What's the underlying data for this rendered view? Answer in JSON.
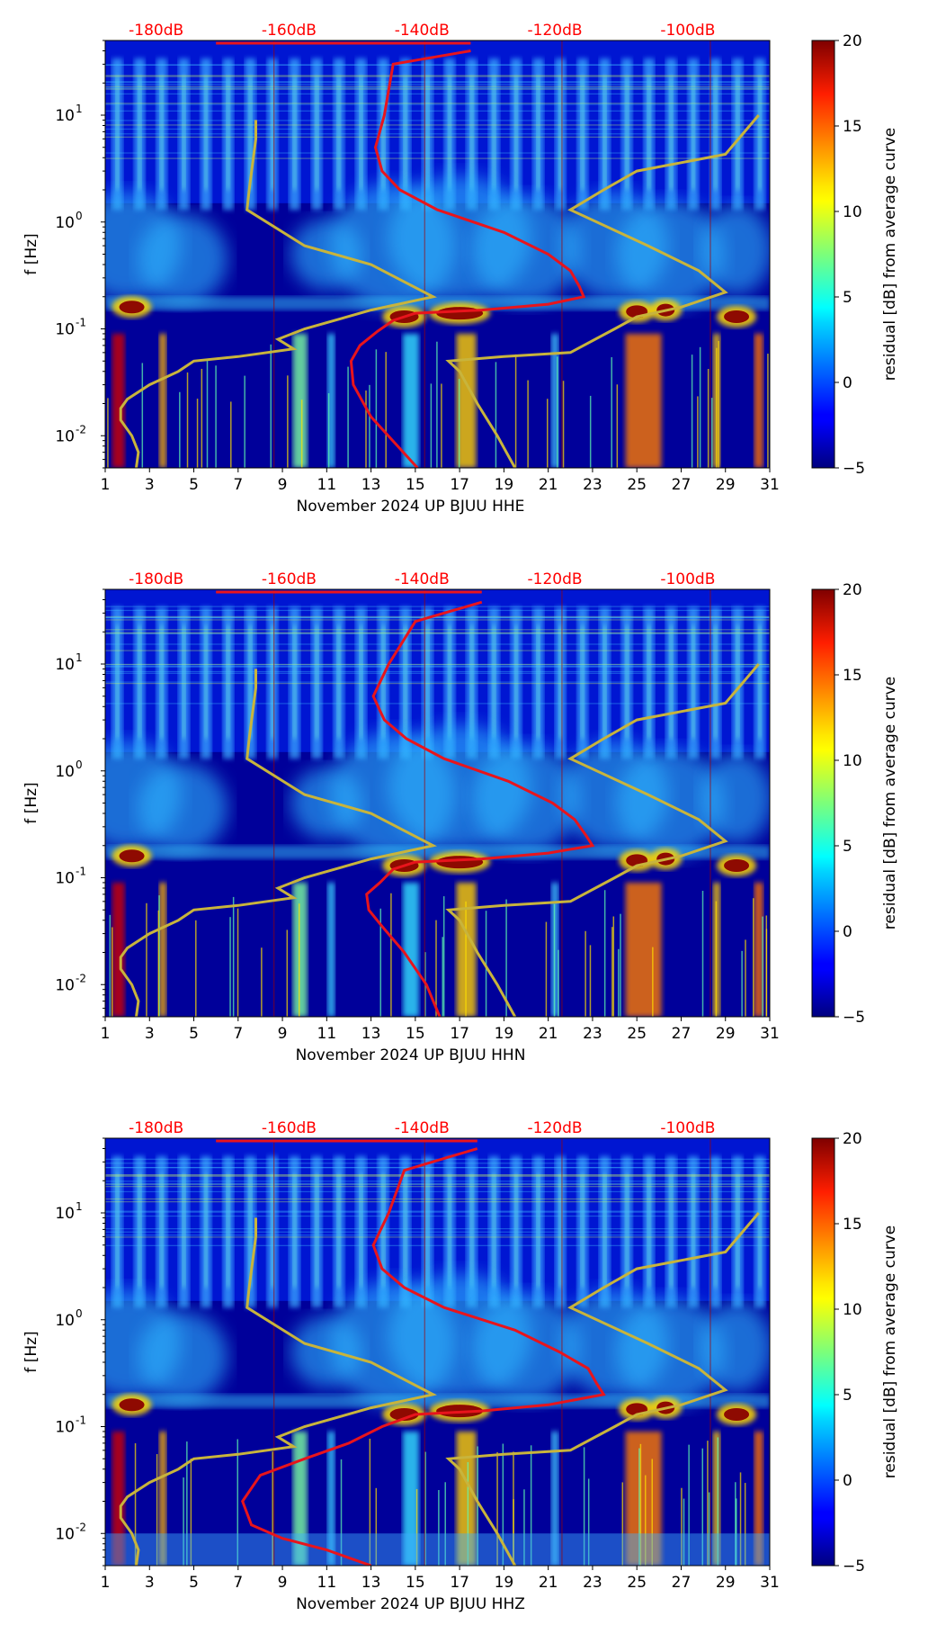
{
  "chart_data": [
    {
      "type": "heatmap",
      "channel": "HHE",
      "xlabel": "November 2024 UP BJUU  HHE",
      "ylabel": "f [Hz]",
      "x_ticks": [
        "1",
        "3",
        "5",
        "7",
        "9",
        "11",
        "13",
        "15",
        "17",
        "19",
        "21",
        "23",
        "25",
        "27",
        "29",
        "31"
      ],
      "y_ticks": [
        {
          "label": "10",
          "exp": "-2",
          "value": 0.01
        },
        {
          "label": "10",
          "exp": "-1",
          "value": 0.1
        },
        {
          "label": "10",
          "exp": "0",
          "value": 1
        },
        {
          "label": "10",
          "exp": "1",
          "value": 10
        }
      ],
      "top_labels": [
        "-180dB",
        "-160dB",
        "-140dB",
        "-120dB",
        "-100dB"
      ],
      "colorbar": {
        "label": "residual [dB] from average curve",
        "ticks": [
          "20",
          "15",
          "10",
          "5",
          "0",
          "−5"
        ],
        "range": [
          -5,
          20
        ]
      },
      "xlim": [
        1,
        31
      ],
      "ylim": [
        0.005,
        50
      ],
      "red_curve": [
        [
          17.5,
          40
        ],
        [
          14,
          30
        ],
        [
          13.6,
          10
        ],
        [
          13.2,
          5
        ],
        [
          13.5,
          3
        ],
        [
          14.3,
          2
        ],
        [
          16,
          1.3
        ],
        [
          19,
          0.8
        ],
        [
          21,
          0.5
        ],
        [
          22,
          0.35
        ],
        [
          22.4,
          0.25
        ],
        [
          22.6,
          0.2
        ],
        [
          21,
          0.17
        ],
        [
          18,
          0.15
        ],
        [
          15,
          0.14
        ],
        [
          14,
          0.12
        ],
        [
          13.3,
          0.095
        ],
        [
          12.5,
          0.07
        ],
        [
          12.1,
          0.05
        ],
        [
          12.2,
          0.03
        ],
        [
          13,
          0.015
        ],
        [
          14.2,
          0.008
        ],
        [
          15.1,
          0.005
        ]
      ],
      "yellow_curve": [
        [
          7.8,
          9
        ],
        [
          7.8,
          6
        ],
        [
          7.5,
          2
        ],
        [
          7.4,
          1.3
        ],
        [
          10,
          0.6
        ],
        [
          13,
          0.4
        ],
        [
          15.8,
          0.2
        ],
        [
          13,
          0.15
        ],
        [
          10,
          0.1
        ],
        [
          8.8,
          0.08
        ],
        [
          9.5,
          0.065
        ],
        [
          7,
          0.055
        ],
        [
          5,
          0.05
        ],
        [
          4.3,
          0.04
        ],
        [
          3,
          0.03
        ],
        [
          2,
          0.022
        ],
        [
          1.7,
          0.018
        ],
        [
          1.7,
          0.014
        ],
        [
          2.2,
          0.01
        ],
        [
          2.5,
          0.007
        ],
        [
          2.4,
          0.005
        ]
      ],
      "yellow_curve_right": [
        [
          30.5,
          10
        ],
        [
          29,
          4.3
        ],
        [
          25,
          3
        ],
        [
          23.5,
          2
        ],
        [
          22,
          1.3
        ],
        [
          25.5,
          0.6
        ],
        [
          27.8,
          0.35
        ],
        [
          29,
          0.22
        ],
        [
          27,
          0.16
        ],
        [
          25,
          0.13
        ],
        [
          24,
          0.1
        ],
        [
          22,
          0.06
        ],
        [
          19,
          0.055
        ],
        [
          16.5,
          0.05
        ],
        [
          17,
          0.04
        ],
        [
          17.8,
          0.02
        ],
        [
          18.7,
          0.01
        ],
        [
          19.5,
          0.005
        ]
      ]
    },
    {
      "type": "heatmap",
      "channel": "HHN",
      "xlabel": "November 2024 UP BJUU  HHN",
      "ylabel": "f [Hz]",
      "x_ticks": [
        "1",
        "3",
        "5",
        "7",
        "9",
        "11",
        "13",
        "15",
        "17",
        "19",
        "21",
        "23",
        "25",
        "27",
        "29",
        "31"
      ],
      "y_ticks": [
        {
          "label": "10",
          "exp": "-2",
          "value": 0.01
        },
        {
          "label": "10",
          "exp": "-1",
          "value": 0.1
        },
        {
          "label": "10",
          "exp": "0",
          "value": 1
        },
        {
          "label": "10",
          "exp": "1",
          "value": 10
        }
      ],
      "top_labels": [
        "-180dB",
        "-160dB",
        "-140dB",
        "-120dB",
        "-100dB"
      ],
      "colorbar": {
        "label": "residual [dB] from average curve",
        "ticks": [
          "20",
          "15",
          "10",
          "5",
          "0",
          "−5"
        ],
        "range": [
          -5,
          20
        ]
      },
      "xlim": [
        1,
        31
      ],
      "ylim": [
        0.005,
        50
      ],
      "red_curve": [
        [
          18,
          38
        ],
        [
          15,
          25
        ],
        [
          13.8,
          10
        ],
        [
          13.1,
          5
        ],
        [
          13.6,
          3
        ],
        [
          14.6,
          2
        ],
        [
          16.3,
          1.3
        ],
        [
          19.2,
          0.8
        ],
        [
          21.2,
          0.5
        ],
        [
          22.2,
          0.35
        ],
        [
          22.7,
          0.25
        ],
        [
          23,
          0.2
        ],
        [
          21,
          0.17
        ],
        [
          18,
          0.15
        ],
        [
          15,
          0.14
        ],
        [
          14,
          0.12
        ],
        [
          13.4,
          0.09
        ],
        [
          12.8,
          0.07
        ],
        [
          12.9,
          0.05
        ],
        [
          13.5,
          0.035
        ],
        [
          14.5,
          0.02
        ],
        [
          15.5,
          0.01
        ],
        [
          16.1,
          0.005
        ]
      ],
      "yellow_curve": [
        [
          7.8,
          9
        ],
        [
          7.8,
          6
        ],
        [
          7.5,
          2
        ],
        [
          7.4,
          1.3
        ],
        [
          10,
          0.6
        ],
        [
          13,
          0.4
        ],
        [
          15.8,
          0.2
        ],
        [
          13,
          0.15
        ],
        [
          10,
          0.1
        ],
        [
          8.8,
          0.08
        ],
        [
          9.5,
          0.065
        ],
        [
          7,
          0.055
        ],
        [
          5,
          0.05
        ],
        [
          4.3,
          0.04
        ],
        [
          3,
          0.03
        ],
        [
          2,
          0.022
        ],
        [
          1.7,
          0.018
        ],
        [
          1.7,
          0.014
        ],
        [
          2.2,
          0.01
        ],
        [
          2.5,
          0.007
        ],
        [
          2.4,
          0.005
        ]
      ],
      "yellow_curve_right": [
        [
          30.5,
          10
        ],
        [
          29,
          4.3
        ],
        [
          25,
          3
        ],
        [
          23.5,
          2
        ],
        [
          22,
          1.3
        ],
        [
          25.5,
          0.6
        ],
        [
          27.8,
          0.35
        ],
        [
          29,
          0.22
        ],
        [
          27,
          0.16
        ],
        [
          25,
          0.13
        ],
        [
          24,
          0.1
        ],
        [
          22,
          0.06
        ],
        [
          19,
          0.055
        ],
        [
          16.5,
          0.05
        ],
        [
          17,
          0.04
        ],
        [
          17.8,
          0.02
        ],
        [
          18.7,
          0.01
        ],
        [
          19.5,
          0.005
        ]
      ]
    },
    {
      "type": "heatmap",
      "channel": "HHZ",
      "xlabel": "November 2024 UP BJUU  HHZ",
      "ylabel": "f [Hz]",
      "x_ticks": [
        "1",
        "3",
        "5",
        "7",
        "9",
        "11",
        "13",
        "15",
        "17",
        "19",
        "21",
        "23",
        "25",
        "27",
        "29",
        "31"
      ],
      "y_ticks": [
        {
          "label": "10",
          "exp": "-2",
          "value": 0.01
        },
        {
          "label": "10",
          "exp": "-1",
          "value": 0.1
        },
        {
          "label": "10",
          "exp": "0",
          "value": 1
        },
        {
          "label": "10",
          "exp": "1",
          "value": 10
        }
      ],
      "top_labels": [
        "-180dB",
        "-160dB",
        "-140dB",
        "-120dB",
        "-100dB"
      ],
      "colorbar": {
        "label": "residual [dB] from average curve",
        "ticks": [
          "20",
          "15",
          "10",
          "5",
          "0",
          "−5"
        ],
        "range": [
          -5,
          20
        ]
      },
      "xlim": [
        1,
        31
      ],
      "ylim": [
        0.005,
        50
      ],
      "red_curve": [
        [
          17.8,
          40
        ],
        [
          14.5,
          25
        ],
        [
          13.8,
          10
        ],
        [
          13.1,
          5
        ],
        [
          13.5,
          3
        ],
        [
          14.5,
          2
        ],
        [
          16.3,
          1.3
        ],
        [
          19.5,
          0.8
        ],
        [
          21.5,
          0.5
        ],
        [
          22.8,
          0.35
        ],
        [
          23.2,
          0.25
        ],
        [
          23.5,
          0.2
        ],
        [
          21,
          0.16
        ],
        [
          18,
          0.14
        ],
        [
          15,
          0.13
        ],
        [
          13.5,
          0.1
        ],
        [
          12,
          0.07
        ],
        [
          10,
          0.05
        ],
        [
          8,
          0.035
        ],
        [
          7.2,
          0.02
        ],
        [
          7.6,
          0.012
        ],
        [
          9,
          0.009
        ],
        [
          11,
          0.007
        ],
        [
          13,
          0.005
        ]
      ],
      "yellow_curve": [
        [
          7.8,
          9
        ],
        [
          7.8,
          6
        ],
        [
          7.5,
          2
        ],
        [
          7.4,
          1.3
        ],
        [
          10,
          0.6
        ],
        [
          13,
          0.4
        ],
        [
          15.8,
          0.2
        ],
        [
          13,
          0.15
        ],
        [
          10,
          0.1
        ],
        [
          8.8,
          0.08
        ],
        [
          9.5,
          0.065
        ],
        [
          7,
          0.055
        ],
        [
          5,
          0.05
        ],
        [
          4.3,
          0.04
        ],
        [
          3,
          0.03
        ],
        [
          2,
          0.022
        ],
        [
          1.7,
          0.018
        ],
        [
          1.7,
          0.014
        ],
        [
          2.2,
          0.01
        ],
        [
          2.5,
          0.007
        ],
        [
          2.4,
          0.005
        ]
      ],
      "yellow_curve_right": [
        [
          30.5,
          10
        ],
        [
          29,
          4.3
        ],
        [
          25,
          3
        ],
        [
          23.5,
          2
        ],
        [
          22,
          1.3
        ],
        [
          25.5,
          0.6
        ],
        [
          27.8,
          0.35
        ],
        [
          29,
          0.22
        ],
        [
          27,
          0.16
        ],
        [
          25,
          0.13
        ],
        [
          24,
          0.1
        ],
        [
          22,
          0.06
        ],
        [
          19,
          0.055
        ],
        [
          16.5,
          0.05
        ],
        [
          17,
          0.04
        ],
        [
          17.8,
          0.02
        ],
        [
          18.7,
          0.01
        ],
        [
          19.5,
          0.005
        ]
      ]
    }
  ],
  "colors": {
    "top_label": "#ff0000",
    "red_curve": "#e8141c",
    "yellow_curve": "#c8b43c",
    "background_low": "#00007f"
  }
}
